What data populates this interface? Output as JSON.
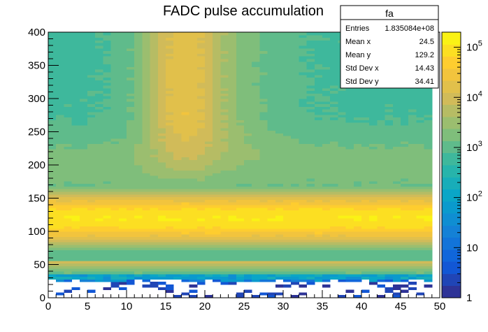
{
  "chart_data": {
    "type": "heatmap",
    "title": "FADC pulse accumulation",
    "xlabel": "",
    "ylabel": "",
    "xlim": [
      0,
      50
    ],
    "ylim": [
      0,
      400
    ],
    "x_bins": 49,
    "y_bins": 100,
    "x_ticks": [
      0,
      5,
      10,
      15,
      20,
      25,
      30,
      35,
      40,
      45,
      50
    ],
    "y_ticks": [
      0,
      50,
      100,
      150,
      200,
      250,
      300,
      350,
      400
    ],
    "z_scale": "log",
    "z_range": [
      1,
      200000
    ],
    "z_ticks": [
      {
        "base": "1",
        "exp": ""
      },
      {
        "base": "10",
        "exp": ""
      },
      {
        "base": "10",
        "exp": "2"
      },
      {
        "base": "10",
        "exp": "3"
      },
      {
        "base": "10",
        "exp": "4"
      },
      {
        "base": "10",
        "exp": "5"
      }
    ],
    "z_tick_values": [
      1,
      10,
      100,
      1000,
      10000,
      100000
    ],
    "description_values": {
      "low_y_sparse_region_max": 30,
      "band_center_y": 120,
      "pulse_peak_x": 17,
      "pulse_peak_log10_counts_at_y300": 3.9
    }
  },
  "stats_box": {
    "name": "fa",
    "rows": [
      {
        "label": "Entries",
        "value": "1.835084e+08"
      },
      {
        "label": "Mean x",
        "value": "24.5"
      },
      {
        "label": "Mean y",
        "value": "129.2"
      },
      {
        "label": "Std Dev x",
        "value": "14.43"
      },
      {
        "label": "Std Dev y",
        "value": "34.41"
      }
    ]
  },
  "colors": {
    "palette": [
      "#352a87",
      "#0f5cdd",
      "#1481d6",
      "#06a4ca",
      "#2eb7a4",
      "#87bf77",
      "#d1bb59",
      "#fec832",
      "#f9fb0e"
    ]
  }
}
